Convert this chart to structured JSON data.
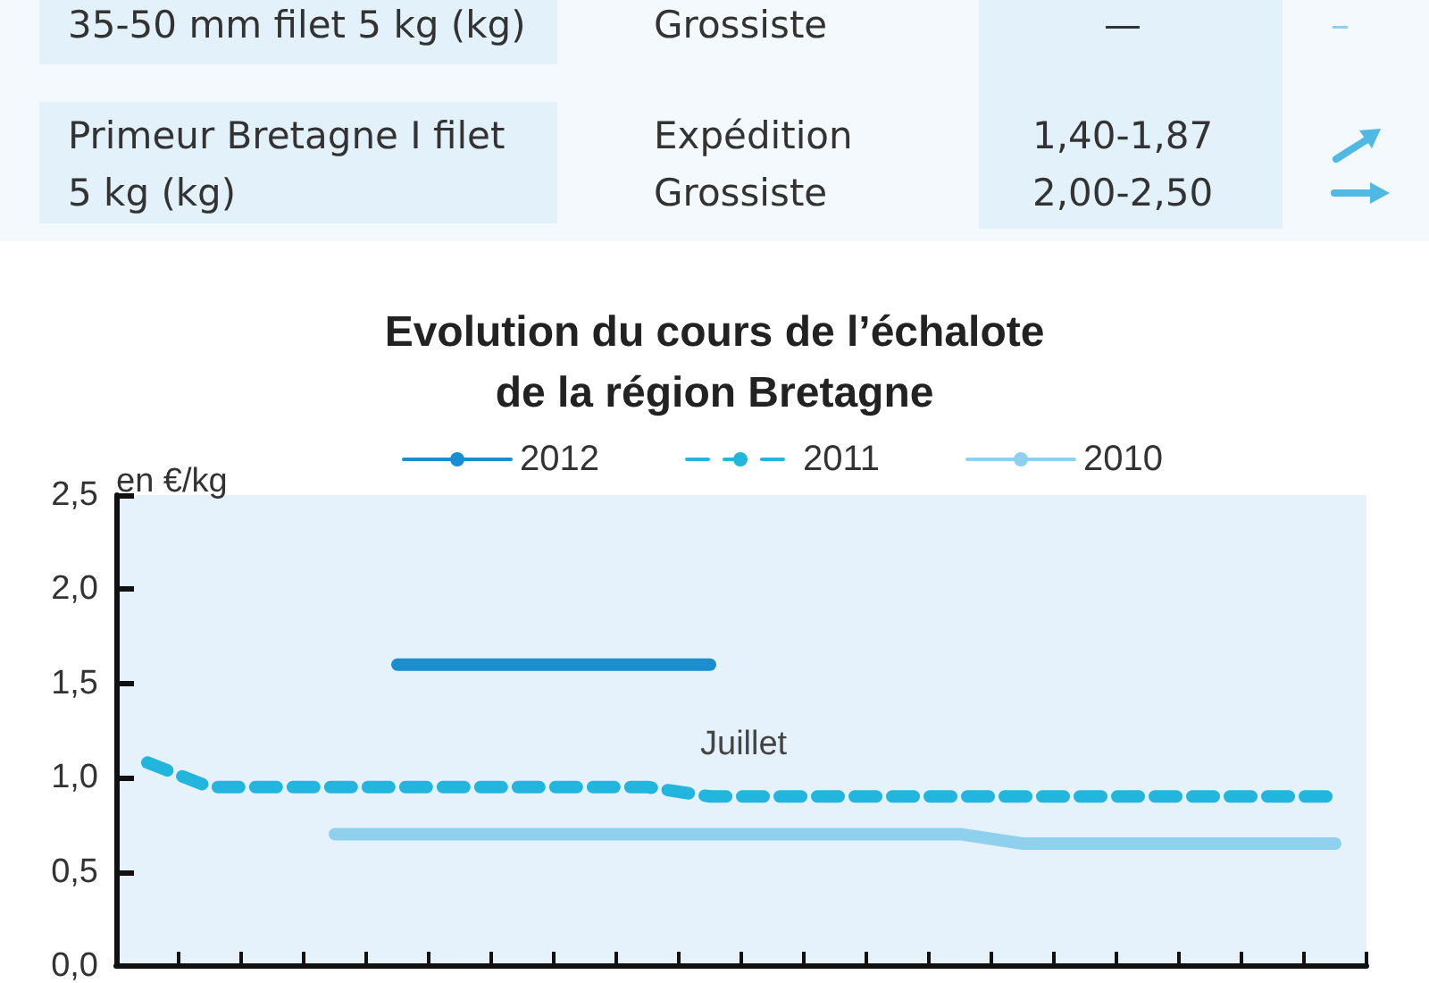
{
  "chart_data": {
    "type": "line",
    "title": "Evolution du cours de l’échalote\nde la région Bretagne",
    "ylabel": "en €/kg",
    "annotations": [
      "Juillet",
      "35-50 mm filet 5 kg (kg)",
      "Grossiste",
      "—",
      "–",
      "Primeur Bretagne I filet\n5 kg (kg)",
      "Expédition\nGrossiste",
      "1,40-1,87\n2,00-2,50"
    ],
    "categories": [
      null,
      null,
      null,
      null,
      null,
      null,
      null,
      null,
      null,
      null,
      null,
      null,
      null,
      null,
      null,
      null,
      null,
      null,
      null,
      null
    ],
    "series": [
      {
        "name": "2012",
        "color": "#1a8fcf",
        "line_style": "solid",
        "values": [
          null,
          null,
          null,
          null,
          1.6,
          1.6,
          1.6,
          1.6,
          1.6,
          1.6,
          null,
          null,
          null,
          null,
          null,
          null,
          null,
          null,
          null,
          null
        ]
      },
      {
        "name": "2011",
        "color": "#22b5de",
        "line_style": "dashed",
        "values": [
          1.08,
          0.95,
          0.95,
          0.95,
          0.95,
          0.95,
          0.95,
          0.95,
          0.95,
          0.9,
          0.9,
          0.9,
          0.9,
          0.9,
          0.9,
          0.9,
          0.9,
          0.9,
          0.9,
          0.9
        ]
      },
      {
        "name": "2010",
        "color": "#8fd0ec",
        "line_style": "solid",
        "values": [
          null,
          null,
          null,
          0.7,
          0.7,
          0.7,
          0.7,
          0.7,
          0.7,
          0.7,
          0.7,
          0.7,
          0.7,
          0.7,
          0.65,
          0.65,
          0.65,
          0.65,
          0.65,
          0.65
        ]
      }
    ],
    "ylim": [
      0,
      2.5
    ],
    "yticks": [
      {
        "value": 0,
        "label": "0,0"
      },
      {
        "value": 0.5,
        "label": "0,5"
      },
      {
        "value": 1,
        "label": "1,0"
      },
      {
        "value": 1.5,
        "label": "1,5"
      },
      {
        "value": 2,
        "label": "2,0"
      },
      {
        "value": 2.5,
        "label": "2,5"
      }
    ],
    "tick_labels": "y",
    "grid": false,
    "legend": "top",
    "marker": "none"
  }
}
